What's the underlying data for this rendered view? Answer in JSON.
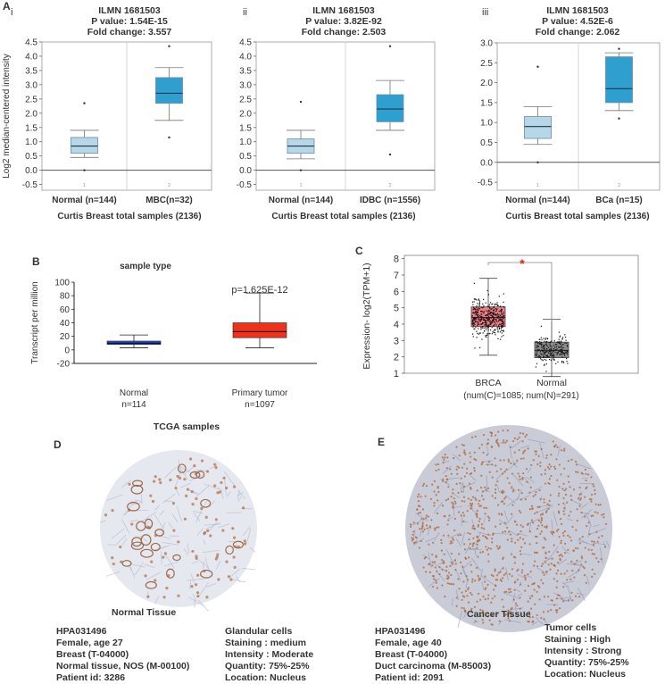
{
  "colors": {
    "light_blue": "#b7d6e8",
    "mid_blue": "#2f9fd0",
    "tcga_normal": "#2e4fd6",
    "tcga_tumor": "#f0321c",
    "gepia_tumor": "#f37d84",
    "gepia_normal": "#8a8a8a",
    "tissue_stain": "#b06a3e"
  },
  "chart_data": [
    {
      "id": "A-i",
      "type": "box",
      "panel_letter": "A",
      "sub_label": "i",
      "title_lines": [
        "ILMN 1681503",
        "P value: 1.54E-15",
        "Fold change: 3.557"
      ],
      "ylabel": "Log2 median-centered intensity",
      "xlabel": "Curtis Breast total samples (2136)",
      "ylim": [
        -0.7,
        4.5
      ],
      "yticks": [
        -0.5,
        0.0,
        0.5,
        1.0,
        1.5,
        2.0,
        2.5,
        3.0,
        3.5,
        4.0,
        4.5
      ],
      "ytick_labels": [
        "-0.5",
        "0.0",
        "0.5",
        "1.0",
        "1.5",
        "2.0",
        "2.5",
        "3.0",
        "3.5",
        "4.0",
        "4.5"
      ],
      "groups": [
        {
          "label": "Normal (n=144)",
          "index": "1",
          "min": 0.45,
          "q1": 0.6,
          "median": 0.85,
          "q3": 1.15,
          "max": 1.4,
          "outliers": [
            2.35,
            0.0
          ],
          "color": "#b7d6e8"
        },
        {
          "label": "MBC(n=32)",
          "index": "2",
          "min": 1.75,
          "q1": 2.35,
          "median": 2.7,
          "q3": 3.25,
          "max": 3.6,
          "outliers": [
            4.35,
            1.15
          ],
          "color": "#2f9fd0"
        }
      ]
    },
    {
      "id": "A-ii",
      "type": "box",
      "panel_letter": "",
      "sub_label": "ii",
      "title_lines": [
        "ILMN 1681503",
        "P value: 3.82E-92",
        "Fold change: 2.503"
      ],
      "ylabel": "",
      "xlabel": "Curtis Breast total samples (2136)",
      "ylim": [
        -0.7,
        4.5
      ],
      "yticks": [
        -0.5,
        0.0,
        0.5,
        1.0,
        1.5,
        2.0,
        2.5,
        3.0,
        3.5,
        4.0,
        4.5
      ],
      "ytick_labels": [
        "-0.5",
        "0.0",
        "0.5",
        "1.0",
        "1.5",
        "2.0",
        "2.5",
        "3.0",
        "3.5",
        "4.0",
        "4.5"
      ],
      "groups": [
        {
          "label": "Normal (n=144)",
          "index": "1",
          "min": 0.4,
          "q1": 0.6,
          "median": 0.85,
          "q3": 1.1,
          "max": 1.4,
          "outliers": [
            2.4,
            0.0
          ],
          "color": "#b7d6e8"
        },
        {
          "label": "IDBC (n=1556)",
          "index": "2",
          "min": 1.4,
          "q1": 1.7,
          "median": 2.15,
          "q3": 2.65,
          "max": 3.15,
          "outliers": [
            4.35,
            0.55
          ],
          "color": "#2f9fd0"
        }
      ]
    },
    {
      "id": "A-iii",
      "type": "box",
      "panel_letter": "",
      "sub_label": "iii",
      "title_lines": [
        "ILMN 1681503",
        "P value: 4.52E-6",
        "Fold change: 2.062"
      ],
      "ylabel": "",
      "xlabel": "Curtis Breast total samples (2136)",
      "ylim": [
        -0.7,
        3.0
      ],
      "yticks": [
        -0.5,
        0.0,
        0.5,
        1.0,
        1.5,
        2.0,
        2.5,
        3.0
      ],
      "ytick_labels": [
        "-0.5",
        "0.0",
        "0.5",
        "1.0",
        "1.5",
        "2.0",
        "2.5",
        "3.0"
      ],
      "groups": [
        {
          "label": "Normal (n=144)",
          "index": "1",
          "min": 0.45,
          "q1": 0.6,
          "median": 0.9,
          "q3": 1.15,
          "max": 1.4,
          "outliers": [
            2.4,
            0.0
          ],
          "color": "#b7d6e8"
        },
        {
          "label": "BCa (n=15)",
          "index": "2",
          "min": 1.3,
          "q1": 1.5,
          "median": 1.85,
          "q3": 2.65,
          "max": 2.75,
          "outliers": [
            2.85,
            1.1
          ],
          "color": "#2f9fd0"
        }
      ]
    },
    {
      "id": "B",
      "type": "box",
      "panel_letter": "B",
      "title": "sample type",
      "ylabel": "Transcript per million",
      "xlabel": "TCGA samples",
      "ylim": [
        -20,
        100
      ],
      "yticks": [
        -20,
        0,
        20,
        40,
        60,
        80,
        100
      ],
      "ytick_labels": [
        "-20",
        "0",
        "20",
        "40",
        "60",
        "80",
        "100"
      ],
      "annotation": "p=1.625E-12",
      "groups": [
        {
          "label": "Normal",
          "n_label": "n=114",
          "min": 3,
          "q1": 8,
          "median": 10,
          "q3": 13,
          "max": 22,
          "color": "#2e4fd6"
        },
        {
          "label": "Primary tumor",
          "n_label": "n=1097",
          "min": 3,
          "q1": 18,
          "median": 27,
          "q3": 40,
          "max": 84,
          "color": "#f0321c"
        }
      ]
    },
    {
      "id": "C",
      "type": "box",
      "panel_letter": "C",
      "ylabel": "Expression- log2(TPM+1)",
      "ylim": [
        1,
        8.2
      ],
      "yticks": [
        1,
        2,
        3,
        4,
        5,
        6,
        7,
        8
      ],
      "ytick_labels": [
        "1",
        "2",
        "3",
        "4",
        "5",
        "6",
        "7",
        "8"
      ],
      "significance": "*",
      "group_labels": [
        "BRCA",
        "Normal"
      ],
      "count_label": "(num(C)=1085; num(N)=291)",
      "groups": [
        {
          "label": "BRCA",
          "min": 2.1,
          "q1": 3.85,
          "median": 4.4,
          "q3": 5.05,
          "max": 6.8,
          "color": "#f37d84",
          "n_points": 420,
          "spread": 0.55,
          "low": 1.5,
          "high": 7.8
        },
        {
          "label": "Normal",
          "min": 0.8,
          "q1": 1.95,
          "median": 2.4,
          "q3": 2.9,
          "max": 4.3,
          "color": "#8a8a8a",
          "n_points": 220,
          "spread": 0.45,
          "low": 0.8,
          "high": 4.7
        }
      ]
    }
  ],
  "panel_d": {
    "letter": "D",
    "tissue_title": "Normal Tissue",
    "info_left": [
      "HPA031496",
      "Female, age 27",
      "Breast (T-04000)",
      "Normal tissue, NOS (M-00100)",
      "Patient id: 3286"
    ],
    "info_right": [
      "Glandular cells",
      "Staining : medium",
      "Intensity : Moderate",
      "Quantity: 75%-25%",
      "Location: Nucleus"
    ]
  },
  "panel_e": {
    "letter": "E",
    "tissue_title": "Cancer Tissue",
    "info_left": [
      "HPA031496",
      "Female, age 40",
      "Breast (T-04000)",
      "Duct carcinoma (M-85003)",
      "Patient id: 2091"
    ],
    "info_right": [
      "Tumor cells",
      "Staining : High",
      "Intensity : Strong",
      "Quantity: 75%-25%",
      "Location: Nucleus"
    ]
  }
}
